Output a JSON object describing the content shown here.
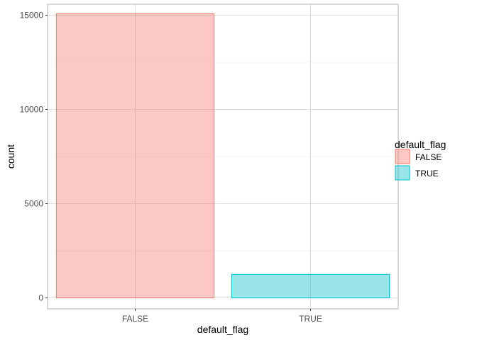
{
  "chart_data": {
    "type": "bar",
    "categories": [
      "FALSE",
      "TRUE"
    ],
    "values": [
      15080,
      1250
    ],
    "xlabel": "default_flag",
    "ylabel": "count",
    "ylim": [
      -580,
      15580
    ],
    "yticks": [
      0,
      5000,
      10000,
      15000
    ],
    "y_tick_labels": [
      "0",
      "5000",
      "10000",
      "15000"
    ],
    "grid": true,
    "legend": {
      "title": "default_flag",
      "position": "right",
      "entries": [
        "FALSE",
        "TRUE"
      ]
    },
    "colors": {
      "fill": [
        "#F8766D",
        "#00BFC4"
      ],
      "fill_opacity": 0.4
    }
  }
}
